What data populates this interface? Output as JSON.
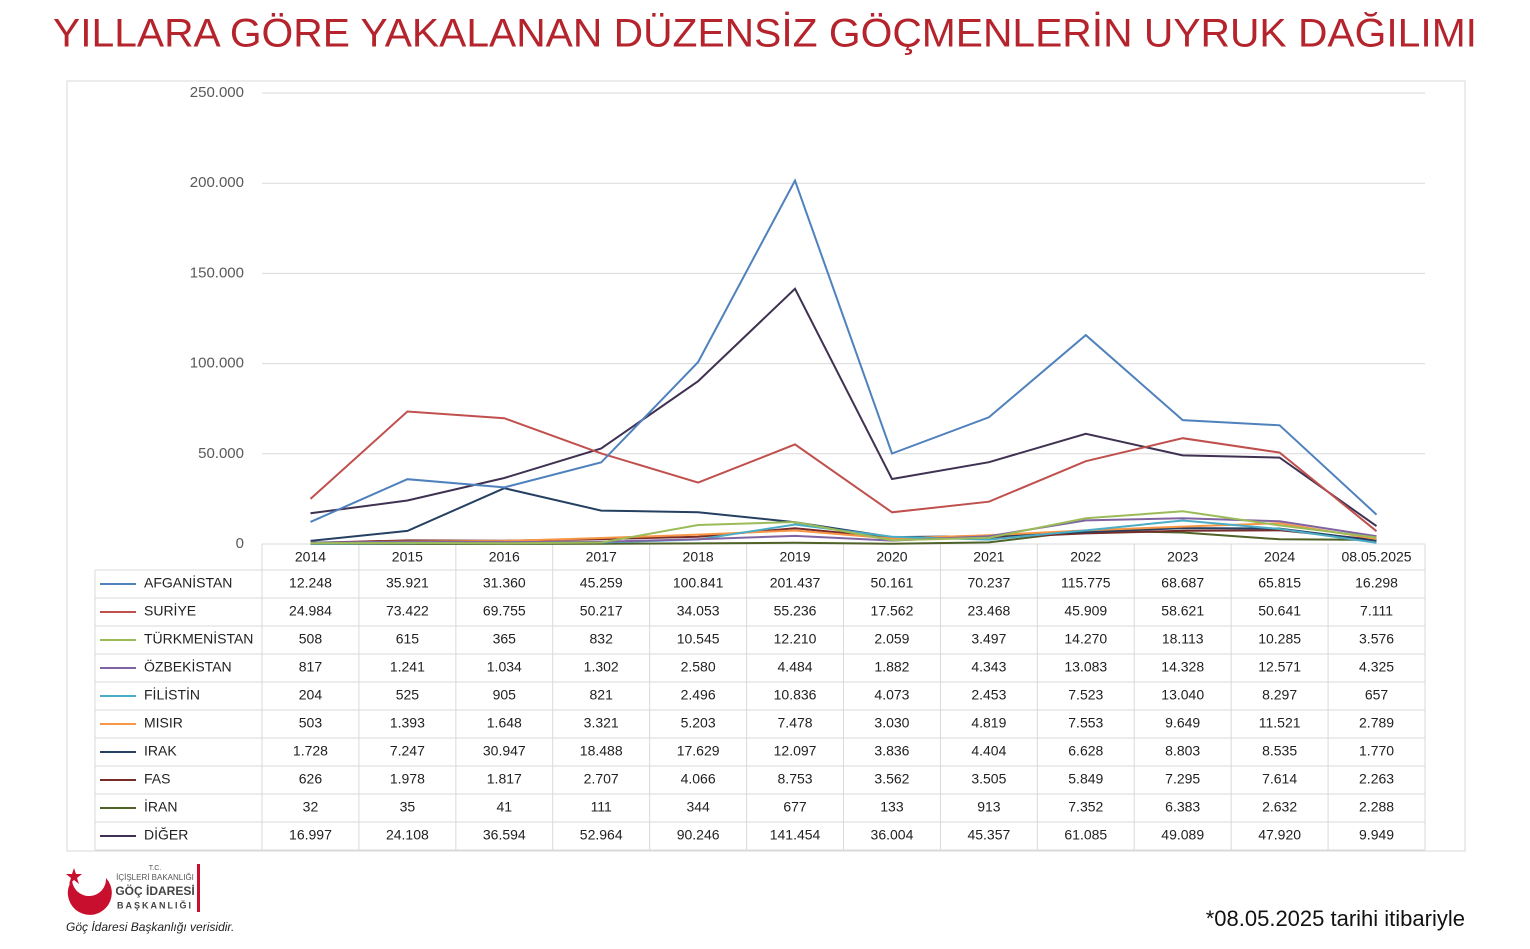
{
  "title": "YILLARA GÖRE YAKALANAN DÜZENSİZ GÖÇMENLERİN UYRUK DAĞILIMI",
  "chart_data": {
    "type": "line",
    "categories": [
      "2014",
      "2015",
      "2016",
      "2017",
      "2018",
      "2019",
      "2020",
      "2021",
      "2022",
      "2023",
      "2024",
      "08.05.2025"
    ],
    "ylim": [
      0,
      250000
    ],
    "yticks": [
      0,
      {
        "value": 50000,
        "label": "50.000"
      },
      {
        "value": 100000,
        "label": "100.000"
      },
      {
        "value": 150000,
        "label": "150.000"
      },
      {
        "value": 200000,
        "label": "200.000"
      },
      {
        "value": 250000,
        "label": "250.000"
      }
    ],
    "grid": true,
    "series": [
      {
        "name": "AFGANİSTAN",
        "color": "#4f81bd",
        "values": [
          12248,
          35921,
          31360,
          45259,
          100841,
          201437,
          50161,
          70237,
          115775,
          68687,
          65815,
          16298
        ],
        "value_labels": [
          "12.248",
          "35.921",
          "31.360",
          "45.259",
          "100.841",
          "201.437",
          "50.161",
          "70.237",
          "115.775",
          "68.687",
          "65.815",
          "16.298"
        ]
      },
      {
        "name": "SURİYE",
        "color": "#c0504d",
        "values": [
          24984,
          73422,
          69755,
          50217,
          34053,
          55236,
          17562,
          23468,
          45909,
          58621,
          50641,
          7111
        ],
        "value_labels": [
          "24.984",
          "73.422",
          "69.755",
          "50.217",
          "34.053",
          "55.236",
          "17.562",
          "23.468",
          "45.909",
          "58.621",
          "50.641",
          "7.111"
        ]
      },
      {
        "name": "TÜRKMENİSTAN",
        "color": "#9bbb59",
        "values": [
          508,
          615,
          365,
          832,
          10545,
          12210,
          2059,
          3497,
          14270,
          18113,
          10285,
          3576
        ],
        "value_labels": [
          "508",
          "615",
          "365",
          "832",
          "10.545",
          "12.210",
          "2.059",
          "3.497",
          "14.270",
          "18.113",
          "10.285",
          "3.576"
        ]
      },
      {
        "name": "ÖZBEKİSTAN",
        "color": "#8064a2",
        "values": [
          817,
          1241,
          1034,
          1302,
          2580,
          4484,
          1882,
          4343,
          13083,
          14328,
          12571,
          4325
        ],
        "value_labels": [
          "817",
          "1.241",
          "1.034",
          "1.302",
          "2.580",
          "4.484",
          "1.882",
          "4.343",
          "13.083",
          "14.328",
          "12.571",
          "4.325"
        ]
      },
      {
        "name": "FİLİSTİN",
        "color": "#4bacc6",
        "values": [
          204,
          525,
          905,
          821,
          2496,
          10836,
          4073,
          2453,
          7523,
          13040,
          8297,
          657
        ],
        "value_labels": [
          "204",
          "525",
          "905",
          "821",
          "2.496",
          "10.836",
          "4.073",
          "2.453",
          "7.523",
          "13.040",
          "8.297",
          "657"
        ]
      },
      {
        "name": "MISIR",
        "color": "#f79646",
        "values": [
          503,
          1393,
          1648,
          3321,
          5203,
          7478,
          3030,
          4819,
          7553,
          9649,
          11521,
          2789
        ],
        "value_labels": [
          "503",
          "1.393",
          "1.648",
          "3.321",
          "5.203",
          "7.478",
          "3.030",
          "4.819",
          "7.553",
          "9.649",
          "11.521",
          "2.789"
        ]
      },
      {
        "name": "IRAK",
        "color": "#254061",
        "values": [
          1728,
          7247,
          30947,
          18488,
          17629,
          12097,
          3836,
          4404,
          6628,
          8803,
          8535,
          1770
        ],
        "value_labels": [
          "1.728",
          "7.247",
          "30.947",
          "18.488",
          "17.629",
          "12.097",
          "3.836",
          "4.404",
          "6.628",
          "8.803",
          "8.535",
          "1.770"
        ]
      },
      {
        "name": "FAS",
        "color": "#772c2a",
        "values": [
          626,
          1978,
          1817,
          2707,
          4066,
          8753,
          3562,
          3505,
          5849,
          7295,
          7614,
          2263
        ],
        "value_labels": [
          "626",
          "1.978",
          "1.817",
          "2.707",
          "4.066",
          "8.753",
          "3.562",
          "3.505",
          "5.849",
          "7.295",
          "7.614",
          "2.263"
        ]
      },
      {
        "name": "İRAN",
        "color": "#4f6228",
        "values": [
          32,
          35,
          41,
          111,
          344,
          677,
          133,
          913,
          7352,
          6383,
          2632,
          2288
        ],
        "value_labels": [
          "32",
          "35",
          "41",
          "111",
          "344",
          "677",
          "133",
          "913",
          "7.352",
          "6.383",
          "2.632",
          "2.288"
        ]
      },
      {
        "name": "DİĞER",
        "color": "#3f3151",
        "values": [
          16997,
          24108,
          36594,
          52964,
          90246,
          141454,
          36004,
          45357,
          61085,
          49089,
          47920,
          9949
        ],
        "value_labels": [
          "16.997",
          "24.108",
          "36.594",
          "52.964",
          "90.246",
          "141.454",
          "36.004",
          "45.357",
          "61.085",
          "49.089",
          "47.920",
          "9.949"
        ]
      }
    ]
  },
  "logo": {
    "line1": "T.C.",
    "line2": "İÇİŞLERİ BAKANLIĞI",
    "line3": "GÖÇ İDARESİ",
    "line4": "BAŞKANLIĞI"
  },
  "source": "Göç İdaresi Başkanlığı verisidir.",
  "footnote": "*08.05.2025 tarihi itibariyle"
}
